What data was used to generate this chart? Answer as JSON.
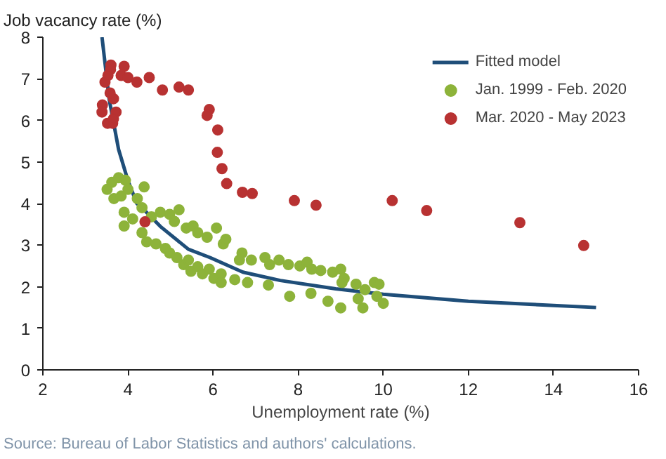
{
  "chart_data": {
    "type": "scatter",
    "xlabel": "Unemployment rate (%)",
    "ylabel": "Job vacancy rate (%)",
    "xlim": [
      2,
      16
    ],
    "xticks": [
      2,
      4,
      6,
      8,
      10,
      12,
      14,
      16
    ],
    "ylim": [
      0,
      8
    ],
    "yticks": [
      0,
      1,
      2,
      3,
      4,
      5,
      6,
      7,
      8
    ],
    "grid": false,
    "legend": "top right",
    "annotations": [
      "Source: Bureau of Labor Statistics and authors' calculations."
    ],
    "series": [
      {
        "name": "Fitted model",
        "type": "line",
        "line_style": "solid",
        "color": "#1f4e79",
        "x": [
          3.39,
          3.56,
          3.78,
          4.0,
          4.21,
          4.33,
          4.76,
          5.42,
          5.93,
          6.7,
          7.58,
          8.88,
          10.0,
          12.0,
          14.0,
          15.0
        ],
        "values": [
          8.0,
          6.5,
          5.3,
          4.55,
          4.0,
          3.9,
          3.45,
          2.9,
          2.7,
          2.35,
          2.15,
          1.95,
          1.82,
          1.65,
          1.55,
          1.5
        ]
      },
      {
        "name": "Jan. 1999 - Feb. 2020",
        "marker": "circle",
        "color": "#8db33a",
        "x": [
          3.51,
          3.62,
          3.78,
          3.94,
          4.0,
          3.67,
          3.84,
          4.22,
          4.38,
          3.91,
          3.91,
          4.11,
          4.33,
          4.55,
          4.76,
          4.98,
          5.2,
          5.09,
          4.33,
          4.44,
          4.66,
          4.88,
          4.98,
          5.15,
          5.31,
          5.42,
          5.48,
          5.64,
          5.75,
          5.91,
          6.02,
          6.19,
          6.19,
          5.37,
          5.53,
          5.64,
          5.86,
          6.08,
          6.24,
          6.3,
          6.51,
          6.81,
          6.68,
          6.62,
          6.9,
          7.3,
          7.22,
          7.33,
          7.55,
          7.77,
          8.04,
          8.21,
          8.32,
          8.53,
          8.81,
          7.8,
          8.3,
          8.7,
          9.0,
          9.08,
          9.03,
          9.0,
          9.36,
          9.57,
          9.41,
          9.52,
          9.79,
          9.9,
          9.85,
          10.0
        ],
        "values": [
          4.34,
          4.51,
          4.62,
          4.56,
          4.34,
          4.12,
          4.18,
          4.12,
          4.4,
          3.79,
          3.46,
          3.63,
          3.9,
          3.68,
          3.79,
          3.74,
          3.85,
          3.57,
          3.3,
          3.08,
          3.03,
          2.92,
          2.81,
          2.7,
          2.53,
          2.64,
          2.37,
          2.48,
          2.31,
          2.42,
          2.2,
          2.1,
          2.31,
          3.41,
          3.46,
          3.3,
          3.19,
          3.41,
          3.03,
          3.14,
          2.17,
          2.1,
          2.81,
          2.64,
          2.64,
          2.04,
          2.7,
          2.53,
          2.64,
          2.53,
          2.5,
          2.59,
          2.42,
          2.39,
          2.35,
          1.77,
          1.84,
          1.65,
          2.42,
          2.2,
          2.1,
          1.49,
          2.06,
          1.93,
          1.71,
          1.49,
          2.1,
          2.06,
          1.77,
          1.6
        ]
      },
      {
        "name": "Mar. 2020 - May 2023",
        "marker": "circle",
        "color": "#b83232",
        "x": [
          3.6,
          3.59,
          3.91,
          3.84,
          4.0,
          4.21,
          4.5,
          4.81,
          5.2,
          5.42,
          5.91,
          5.86,
          6.11,
          6.1,
          6.21,
          6.32,
          6.69,
          6.92,
          7.91,
          8.42,
          10.21,
          11.02,
          13.21,
          14.71,
          3.4,
          3.39,
          3.72,
          3.66,
          3.46,
          3.52,
          3.64,
          3.66,
          3.58,
          3.53,
          4.4
        ],
        "values": [
          7.33,
          7.22,
          7.3,
          7.08,
          7.03,
          6.92,
          7.03,
          6.73,
          6.8,
          6.73,
          6.26,
          6.12,
          5.77,
          5.23,
          4.84,
          4.48,
          4.27,
          4.24,
          4.07,
          3.96,
          4.07,
          3.83,
          3.54,
          2.99,
          6.37,
          6.2,
          6.2,
          6.52,
          6.92,
          5.93,
          5.93,
          6.04,
          6.66,
          7.08,
          3.56
        ]
      }
    ]
  }
}
